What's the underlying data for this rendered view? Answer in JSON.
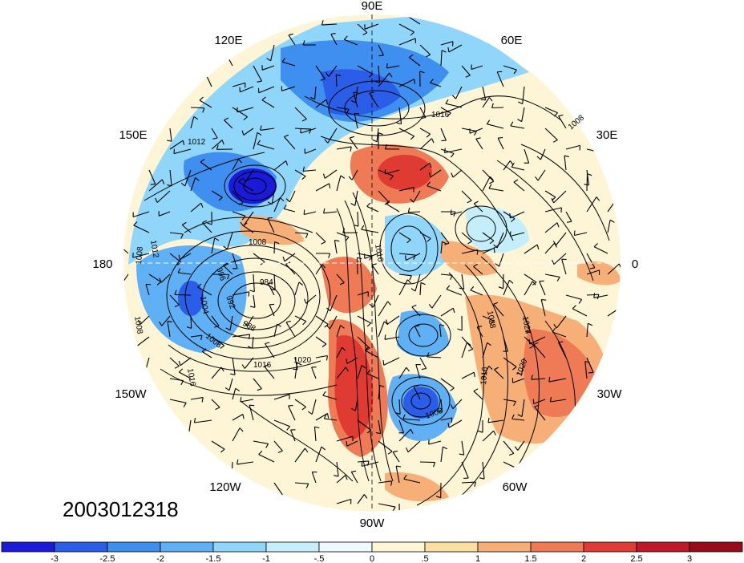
{
  "map": {
    "projection": "north-polar-stereographic",
    "longitude_labels": [
      {
        "text": "90E",
        "lon": 90
      },
      {
        "text": "60E",
        "lon": 60
      },
      {
        "text": "30E",
        "lon": 30
      },
      {
        "text": "0",
        "lon": 0
      },
      {
        "text": "30W",
        "lon": -30
      },
      {
        "text": "60W",
        "lon": -60
      },
      {
        "text": "90W",
        "lon": -90
      },
      {
        "text": "120W",
        "lon": -120
      },
      {
        "text": "150W",
        "lon": -150
      },
      {
        "text": "180",
        "lon": 180
      },
      {
        "text": "150E",
        "lon": 150
      },
      {
        "text": "120E",
        "lon": 120
      }
    ],
    "contour_labels": [
      "1016",
      "1008",
      "1012",
      "1008",
      "1008",
      "1008",
      "984",
      "992",
      "996",
      "1004",
      "988",
      "1006",
      "1016",
      "1020",
      "1016",
      "1016",
      "1008",
      "1028",
      "1024",
      "1016",
      "1020",
      "1012"
    ],
    "timestamp": "2003012318"
  },
  "colorbar": {
    "tick_labels": [
      "-3",
      "-2.5",
      "-2",
      "-1.5",
      "-1",
      "-.5",
      "0",
      ".5",
      "1",
      "1.5",
      "2",
      "2.5",
      "3"
    ],
    "colors": [
      "#1a1ad8",
      "#2a5ee8",
      "#3f8ff0",
      "#5fb0f5",
      "#8fd6fa",
      "#c4eefb",
      "#eefaff",
      "#fdf5d6",
      "#fbdfa0",
      "#f6b077",
      "#ef7a56",
      "#e03b33",
      "#c01828",
      "#980c1a"
    ]
  }
}
